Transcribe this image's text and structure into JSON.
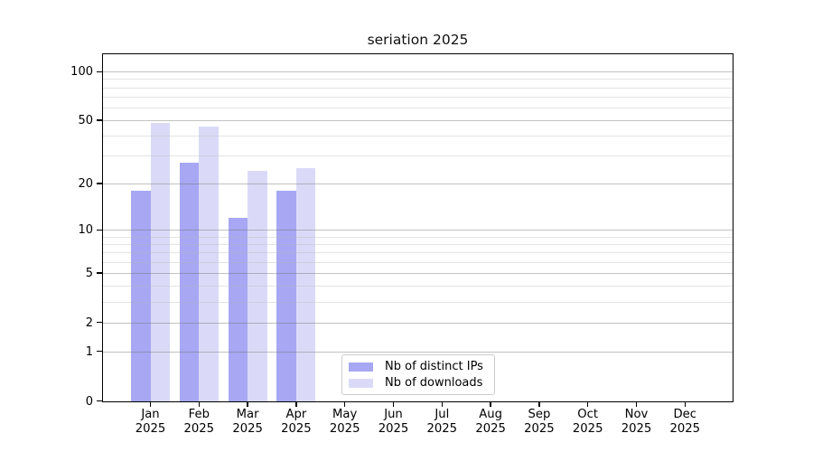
{
  "page": {
    "background": "#ffffff"
  },
  "chart_data": {
    "type": "bar",
    "title": "seriation 2025",
    "categories": [
      "Jan 2025",
      "Feb 2025",
      "Mar 2025",
      "Apr 2025",
      "May 2025",
      "Jun 2025",
      "Jul 2025",
      "Aug 2025",
      "Sep 2025",
      "Oct 2025",
      "Nov 2025",
      "Dec 2025"
    ],
    "series": [
      {
        "name": "Nb of distinct IPs",
        "color": "#a7a7f3",
        "values": [
          18,
          27,
          12,
          18,
          null,
          null,
          null,
          null,
          null,
          null,
          null,
          null
        ]
      },
      {
        "name": "Nb of downloads",
        "color": "#dadaf8",
        "values": [
          48,
          46,
          24,
          25,
          null,
          null,
          null,
          null,
          null,
          null,
          null,
          null
        ]
      }
    ],
    "y_scale": "log1p",
    "y_ticks": [
      0,
      1,
      2,
      5,
      10,
      20,
      50,
      100
    ],
    "y_minor_ticks": [
      3,
      4,
      6,
      7,
      8,
      9,
      30,
      40,
      60,
      70,
      80,
      90
    ],
    "ylim": [
      0,
      127
    ],
    "grid": true,
    "legend_position": "inside-bottom-center",
    "colors": {
      "major_grid": "#c9c9c9",
      "minor_grid": "#e7e7e7",
      "axis": "#000000",
      "legend_border": "#cccccc"
    }
  }
}
